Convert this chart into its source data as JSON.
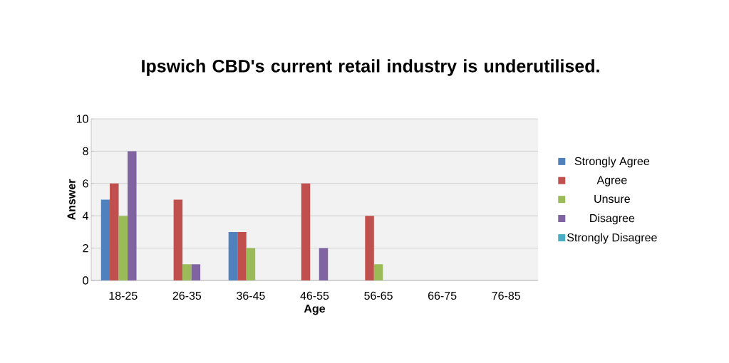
{
  "chart_data": {
    "type": "bar",
    "title": "Ipswich CBD's current retail industry is underutilised.",
    "xlabel": "Age",
    "ylabel": "Answer",
    "categories": [
      "18-25",
      "26-35",
      "36-45",
      "46-55",
      "56-65",
      "66-75",
      "76-85"
    ],
    "series": [
      {
        "name": "Strongly Agree",
        "color": "#4f81bd",
        "values": [
          5,
          0,
          3,
          0,
          0,
          0,
          0
        ]
      },
      {
        "name": "Agree",
        "color": "#c0504d",
        "values": [
          6,
          5,
          3,
          6,
          4,
          0,
          0
        ]
      },
      {
        "name": "Unsure",
        "color": "#9bbb59",
        "values": [
          4,
          1,
          2,
          0,
          1,
          0,
          0
        ]
      },
      {
        "name": "Disagree",
        "color": "#8064a2",
        "values": [
          8,
          1,
          0,
          2,
          0,
          0,
          0
        ]
      },
      {
        "name": "Strongly Disagree",
        "color": "#4bacc6",
        "values": [
          0,
          0,
          0,
          0,
          0,
          0,
          0
        ]
      }
    ],
    "ylim": [
      0,
      10
    ],
    "yticks": [
      0,
      2,
      4,
      6,
      8,
      10
    ],
    "grid": "y",
    "legend": "right"
  }
}
